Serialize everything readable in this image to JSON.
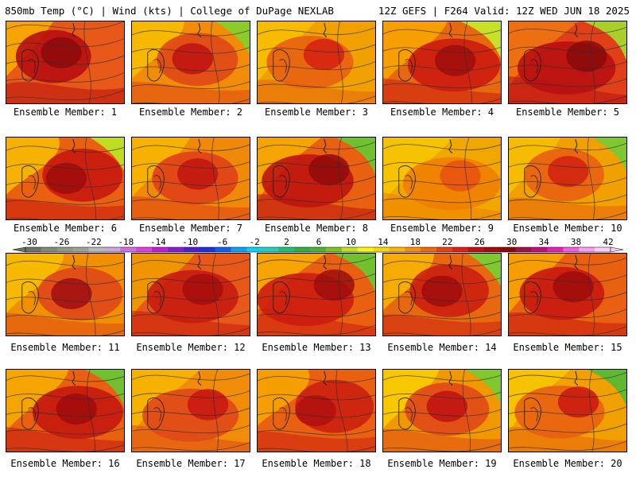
{
  "header": {
    "title_left": "850mb Temp (°C) | Wind (kts) | College of DuPage NEXLAB",
    "title_right": "12Z GEFS | F264 Valid: 12Z WED JUN 18 2025"
  },
  "members": [
    {
      "label": "Ensemble Member: 1",
      "base": "#e85818",
      "warm": "#b81010",
      "hot": "#8c0a0a",
      "edge": "#f8b000",
      "cool": null
    },
    {
      "label": "Ensemble Member: 2",
      "base": "#f08c08",
      "warm": "#e04818",
      "hot": "#c01010",
      "edge": "#f8c000",
      "cool": "#8ccc28"
    },
    {
      "label": "Ensemble Member: 3",
      "base": "#f0a000",
      "warm": "#e86010",
      "hot": "#d42010",
      "edge": "#f8c000",
      "cool": null
    },
    {
      "label": "Ensemble Member: 4",
      "base": "#e86810",
      "warm": "#cc1c10",
      "hot": "#a00c0c",
      "edge": "#f8a800",
      "cool": "#c8e028"
    },
    {
      "label": "Ensemble Member: 5",
      "base": "#e04018",
      "warm": "#b81010",
      "hot": "#880a0a",
      "edge": "#f07810",
      "cool": "#a8d028"
    },
    {
      "label": "Ensemble Member: 6",
      "base": "#e86010",
      "warm": "#c81810",
      "hot": "#a00c0c",
      "edge": "#f8c000",
      "cool": "#c0dc20"
    },
    {
      "label": "Ensemble Member: 7",
      "base": "#f08808",
      "warm": "#e04018",
      "hot": "#c01410",
      "edge": "#f8b800",
      "cool": null
    },
    {
      "label": "Ensemble Member: 8",
      "base": "#e86010",
      "warm": "#c01410",
      "hot": "#900a0a",
      "edge": "#f8b000",
      "cool": "#70c030"
    },
    {
      "label": "Ensemble Member: 9",
      "base": "#f0a800",
      "warm": "#f08000",
      "hot": "#e85010",
      "edge": "#f8c800",
      "cool": null
    },
    {
      "label": "Ensemble Member: 10",
      "base": "#f0a000",
      "warm": "#e86010",
      "hot": "#d02010",
      "edge": "#f8c000",
      "cool": "#80c830"
    },
    {
      "label": "Ensemble Member: 11",
      "base": "#f09000",
      "warm": "#e04818",
      "hot": "#a00c10",
      "edge": "#f8c000",
      "cool": null
    },
    {
      "label": "Ensemble Member: 12",
      "base": "#e85818",
      "warm": "#c81c10",
      "hot": "#a80c0c",
      "edge": "#f0a000",
      "cool": null
    },
    {
      "label": "Ensemble Member: 13",
      "base": "#e86010",
      "warm": "#cc1c10",
      "hot": "#a00c0c",
      "edge": "#f8b000",
      "cool": "#70c030"
    },
    {
      "label": "Ensemble Member: 14",
      "base": "#e86810",
      "warm": "#cc2010",
      "hot": "#a00c0c",
      "edge": "#f8b800",
      "cool": "#80c830"
    },
    {
      "label": "Ensemble Member: 15",
      "base": "#e86010",
      "warm": "#c81810",
      "hot": "#a00c0c",
      "edge": "#f8a800",
      "cool": null
    },
    {
      "label": "Ensemble Member: 16",
      "base": "#e86010",
      "warm": "#c41810",
      "hot": "#a00c0c",
      "edge": "#f8b000",
      "cool": "#70c030"
    },
    {
      "label": "Ensemble Member: 17",
      "base": "#f08c08",
      "warm": "#e04818",
      "hot": "#c81410",
      "edge": "#f8b800",
      "cool": null
    },
    {
      "label": "Ensemble Member: 18",
      "base": "#e86010",
      "warm": "#cc2010",
      "hot": "#b01010",
      "edge": "#f8a800",
      "cool": null
    },
    {
      "label": "Ensemble Member: 19",
      "base": "#f09800",
      "warm": "#e04818",
      "hot": "#c01010",
      "edge": "#f8d000",
      "cool": "#80c830"
    },
    {
      "label": "Ensemble Member: 20",
      "base": "#f0a000",
      "warm": "#e86010",
      "hot": "#c81810",
      "edge": "#f8c800",
      "cool": "#60b830"
    }
  ],
  "colorbar": {
    "tick_labels": [
      "-30",
      "-26",
      "-22",
      "-18",
      "-14",
      "-10",
      "-6",
      "-2",
      "2",
      "6",
      "10",
      "14",
      "18",
      "22",
      "26",
      "30",
      "34",
      "38",
      "42"
    ],
    "colors": [
      "#707070",
      "#808880",
      "#909890",
      "#a0a0a0",
      "#b8b8c8",
      "#c8a8e0",
      "#d070e0",
      "#e040e0",
      "#c020d0",
      "#8020d0",
      "#5020d0",
      "#2030e0",
      "#1060f0",
      "#10a0f0",
      "#10d0f0",
      "#20d0c0",
      "#20c080",
      "#30b040",
      "#50b030",
      "#80c020",
      "#c0e020",
      "#f8f800",
      "#f8d800",
      "#f8b800",
      "#f89000",
      "#f06800",
      "#e84010",
      "#e02010",
      "#c01010",
      "#a00c0c",
      "#880808",
      "#a01050",
      "#c01080",
      "#e020c0",
      "#f060e0",
      "#f8a0f0",
      "#f8d0f8"
    ]
  }
}
